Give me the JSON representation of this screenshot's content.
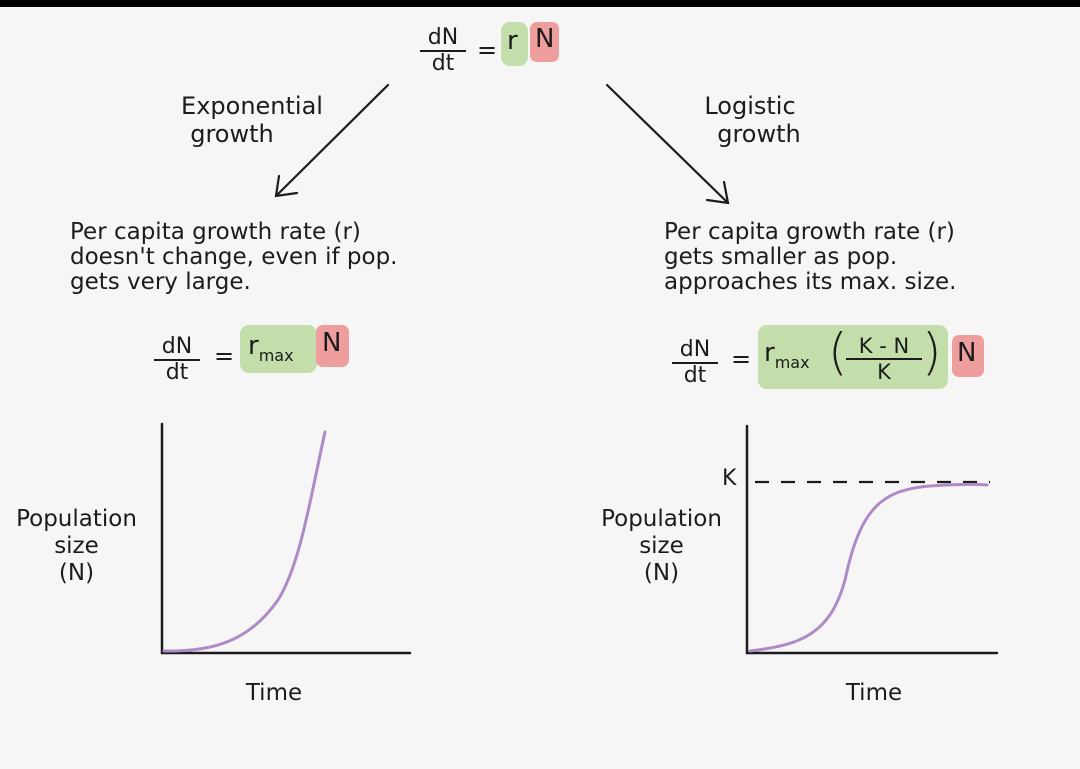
{
  "top_equation": {
    "numerator": "dN",
    "denominator": "dt",
    "equals": "=",
    "r": "r",
    "N": "N"
  },
  "left": {
    "branch_label": [
      "Exponential",
      "growth"
    ],
    "description": [
      "Per capita growth rate (r)",
      "doesn't change, even if pop.",
      "gets very large."
    ],
    "equation": {
      "numerator": "dN",
      "denominator": "dt",
      "equals": "=",
      "r": "r",
      "r_sub": "max",
      "N": "N"
    },
    "graph": {
      "ylabel": [
        "Population",
        "size",
        "(N)"
      ],
      "xlabel": "Time"
    }
  },
  "right": {
    "branch_label": [
      "Logistic",
      "growth"
    ],
    "description": [
      "Per capita growth rate (r)",
      "gets smaller as pop.",
      "approaches its max. size."
    ],
    "equation": {
      "numerator": "dN",
      "denominator": "dt",
      "equals": "=",
      "r": "r",
      "r_sub": "max",
      "k_num": "K - N",
      "k_den": "K",
      "N": "N"
    },
    "graph": {
      "ylabel": [
        "Population",
        "size",
        "(N)"
      ],
      "xlabel": "Time",
      "k_label": "K"
    }
  },
  "colors": {
    "highlight_green": "#c4deab",
    "highlight_red": "#ef9e9e",
    "curve": "#b08ac6",
    "ink": "#1c1c1c"
  }
}
